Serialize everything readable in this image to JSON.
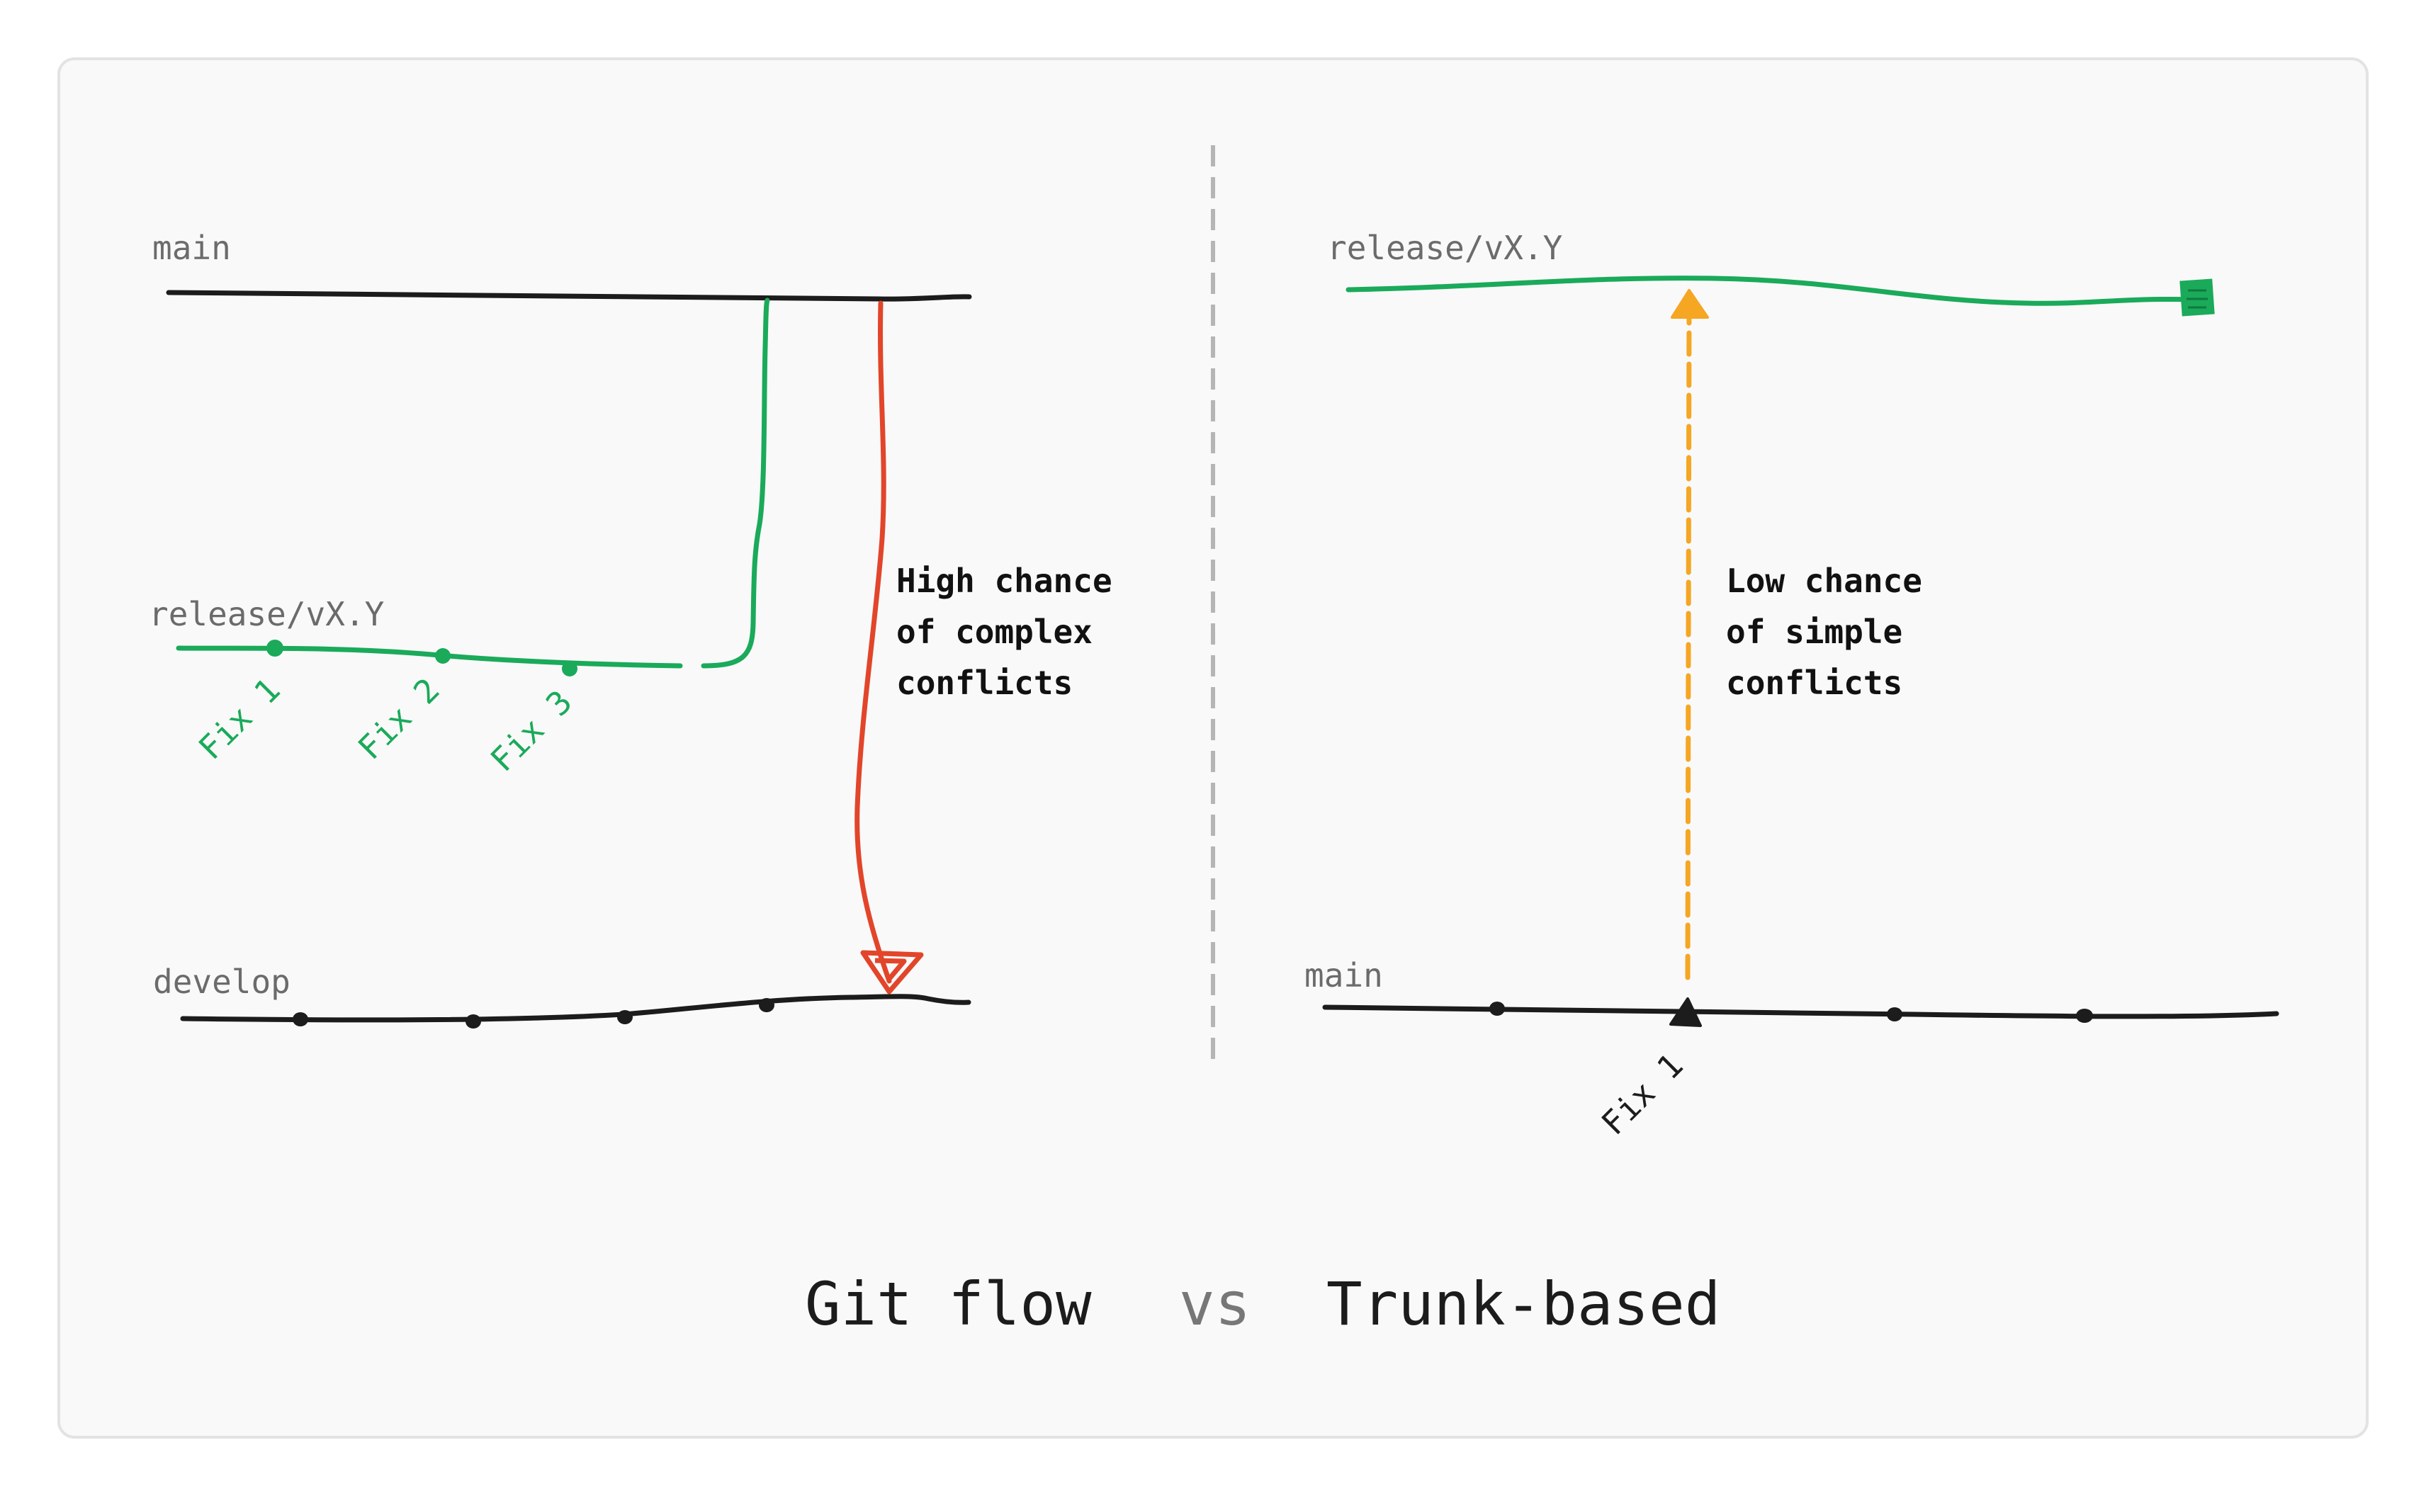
{
  "colors": {
    "background": "#ffffff",
    "panel": "#f9f9f9",
    "panel_border": "#e3e3e3",
    "black": "#1c1c1c",
    "green": "#1aaa5a",
    "red": "#e2452a",
    "orange": "#f5a623",
    "divider": "#b5b5b5",
    "label_gray": "#6b6b6b",
    "vs_gray": "#777777"
  },
  "git_flow": {
    "branches": {
      "main": "main",
      "release": "release/vX.Y",
      "develop": "develop"
    },
    "fixes": [
      "Fix 1",
      "Fix 2",
      "Fix 3"
    ],
    "note": [
      "High chance",
      "of complex",
      "conflicts"
    ]
  },
  "trunk_based": {
    "branches": {
      "release": "release/vX.Y",
      "main": "main"
    },
    "fix": "Fix 1",
    "note": [
      "Low chance",
      "of simple",
      "conflicts"
    ]
  },
  "footer": {
    "left": "Git flow",
    "vs": "vs",
    "right": "Trunk-based"
  }
}
